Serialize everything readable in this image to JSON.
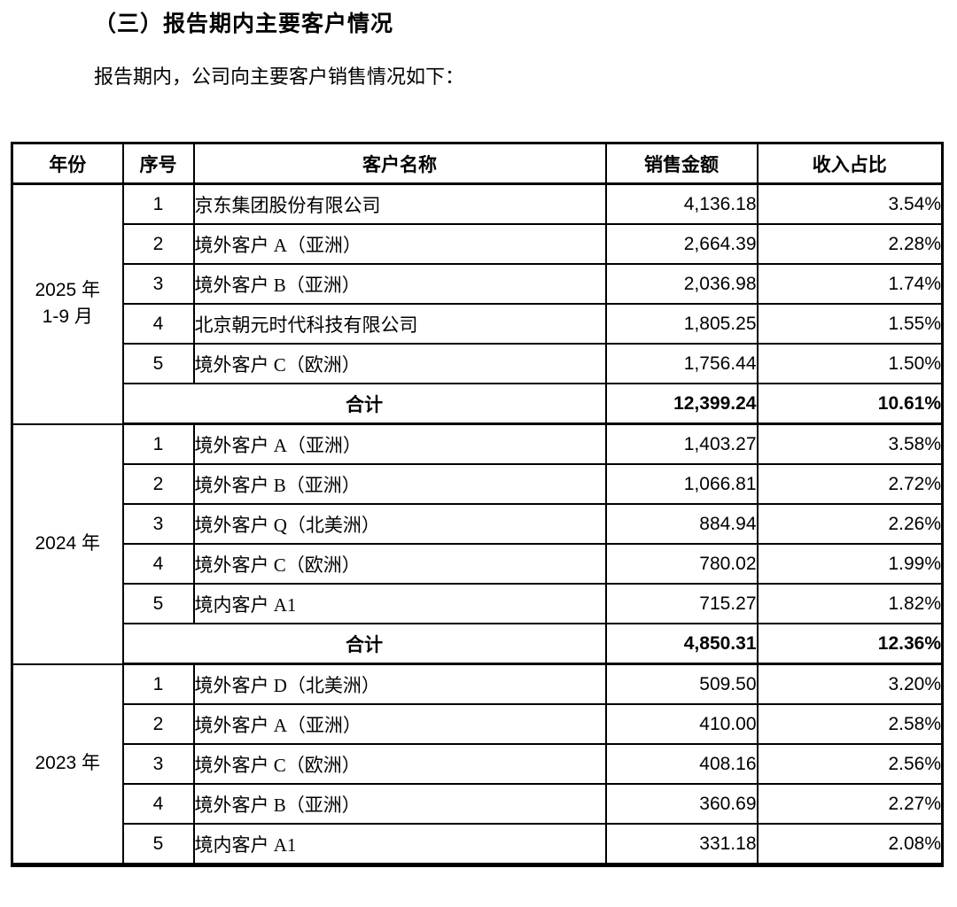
{
  "page": {
    "title": "（三）报告期内主要客户情况",
    "intro": "报告期内，公司向主要客户销售情况如下："
  },
  "table": {
    "headers": {
      "year": "年份",
      "index": "序号",
      "customer": "客户名称",
      "amount": "销售金额",
      "ratio": "收入占比"
    },
    "total_label": "合计",
    "groups": [
      {
        "year_lines": [
          "2025 年",
          "1-9 月"
        ],
        "rows": [
          {
            "index": "1",
            "customer": "京东集团股份有限公司",
            "amount": "4,136.18",
            "ratio": "3.54%"
          },
          {
            "index": "2",
            "customer": "境外客户 A（亚洲）",
            "amount": "2,664.39",
            "ratio": "2.28%"
          },
          {
            "index": "3",
            "customer": "境外客户 B（亚洲）",
            "amount": "2,036.98",
            "ratio": "1.74%"
          },
          {
            "index": "4",
            "customer": "北京朝元时代科技有限公司",
            "amount": "1,805.25",
            "ratio": "1.55%"
          },
          {
            "index": "5",
            "customer": "境外客户 C（欧洲）",
            "amount": "1,756.44",
            "ratio": "1.50%"
          }
        ],
        "total": {
          "amount": "12,399.24",
          "ratio": "10.61%"
        }
      },
      {
        "year_lines": [
          "2024 年"
        ],
        "rows": [
          {
            "index": "1",
            "customer": "境外客户 A（亚洲）",
            "amount": "1,403.27",
            "ratio": "3.58%"
          },
          {
            "index": "2",
            "customer": "境外客户 B（亚洲）",
            "amount": "1,066.81",
            "ratio": "2.72%"
          },
          {
            "index": "3",
            "customer": "境外客户 Q（北美洲）",
            "amount": "884.94",
            "ratio": "2.26%"
          },
          {
            "index": "4",
            "customer": "境外客户 C（欧洲）",
            "amount": "780.02",
            "ratio": "1.99%"
          },
          {
            "index": "5",
            "customer": "境内客户 A1",
            "amount": "715.27",
            "ratio": "1.82%"
          }
        ],
        "total": {
          "amount": "4,850.31",
          "ratio": "12.36%"
        }
      },
      {
        "year_lines": [
          "2023 年"
        ],
        "rows": [
          {
            "index": "1",
            "customer": "境外客户 D（北美洲）",
            "amount": "509.50",
            "ratio": "3.20%"
          },
          {
            "index": "2",
            "customer": "境外客户 A（亚洲）",
            "amount": "410.00",
            "ratio": "2.58%"
          },
          {
            "index": "3",
            "customer": "境外客户 C（欧洲）",
            "amount": "408.16",
            "ratio": "2.56%"
          },
          {
            "index": "4",
            "customer": "境外客户 B（亚洲）",
            "amount": "360.69",
            "ratio": "2.27%"
          },
          {
            "index": "5",
            "customer": "境内客户 A1",
            "amount": "331.18",
            "ratio": "2.08%"
          }
        ],
        "total": null
      }
    ]
  }
}
